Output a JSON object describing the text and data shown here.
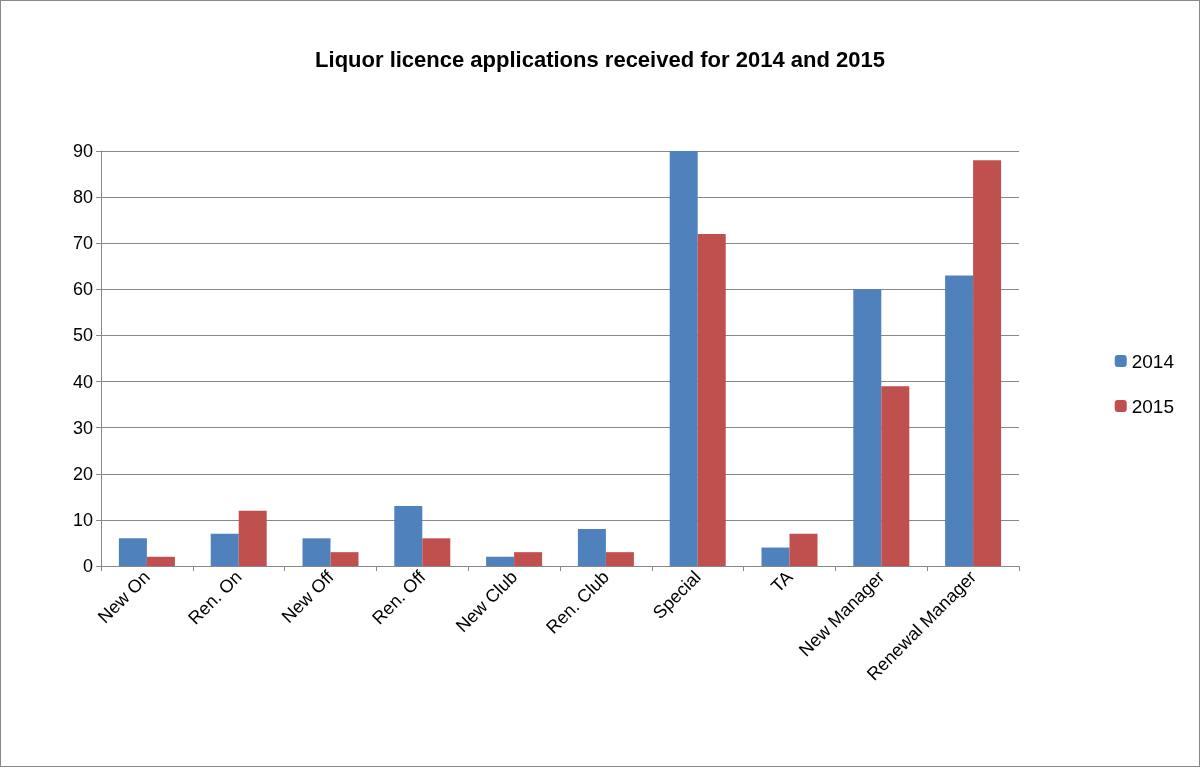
{
  "chart_data": {
    "type": "bar",
    "title": "Liquor licence applications received for 2014 and 2015",
    "categories": [
      "New On",
      "Ren. On",
      "New Off",
      "Ren. Off",
      "New Club",
      "Ren. Club",
      "Special",
      "TA",
      "New Manager",
      "Renewal Manager"
    ],
    "series": [
      {
        "name": "2014",
        "color": "#4f81bd",
        "values": [
          6,
          7,
          6,
          13,
          2,
          8,
          90,
          4,
          60,
          63
        ]
      },
      {
        "name": "2015",
        "color": "#c0504d",
        "values": [
          2,
          12,
          3,
          6,
          3,
          3,
          72,
          7,
          39,
          88
        ]
      }
    ],
    "ylim": [
      0,
      90
    ],
    "yticks": [
      0,
      10,
      20,
      30,
      40,
      50,
      60,
      70,
      80,
      90
    ],
    "grid": "y",
    "legend": "right"
  }
}
